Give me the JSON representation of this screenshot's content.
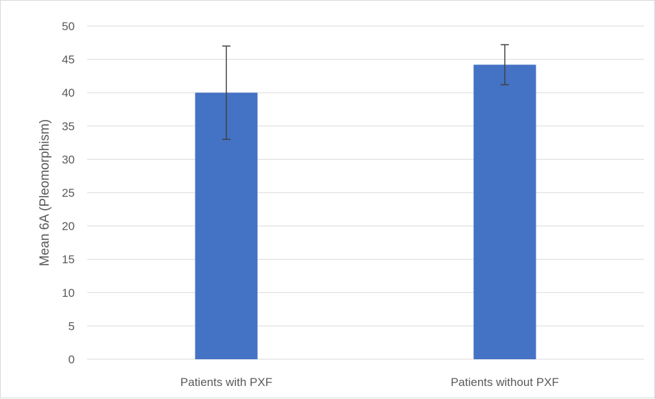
{
  "chart_data": {
    "type": "bar",
    "title": "",
    "xlabel": "",
    "ylabel": "Mean 6A (Pleomorphism)",
    "categories": [
      "Patients with PXF",
      "Patients without PXF"
    ],
    "values": [
      40,
      44.2
    ],
    "error_bars": [
      {
        "lower": 33,
        "upper": 47
      },
      {
        "lower": 41.2,
        "upper": 47.2
      }
    ],
    "ylim": [
      0,
      50
    ],
    "yticks": [
      0,
      5,
      10,
      15,
      20,
      25,
      30,
      35,
      40,
      45,
      50
    ],
    "grid": true,
    "legend": "none",
    "colors": {
      "bar": "#4472C4",
      "gridline": "#d9d9d9",
      "error_bar": "#404040",
      "text": "#595959"
    }
  }
}
